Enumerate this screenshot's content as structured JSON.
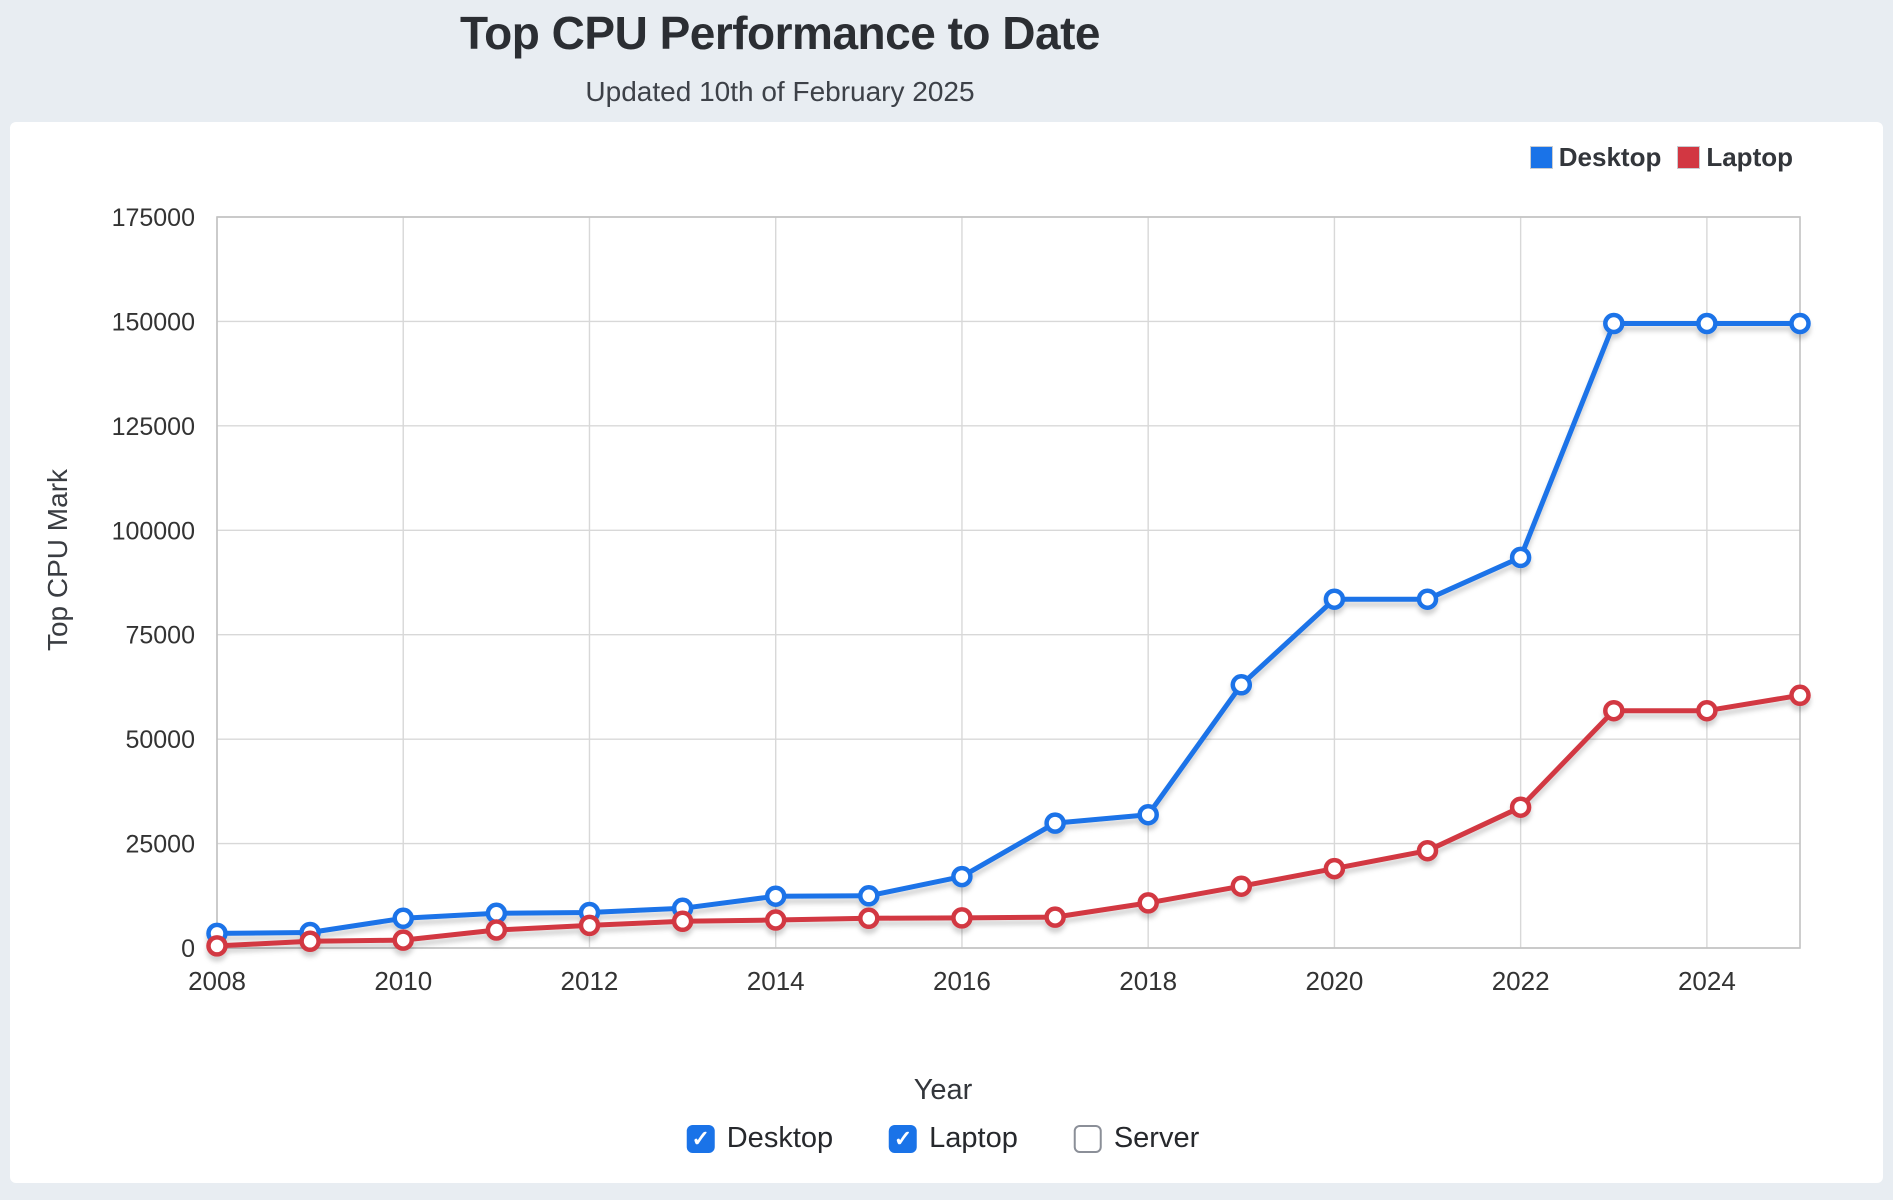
{
  "header": {
    "title": "Top CPU Performance to Date",
    "subtitle": "Updated 10th of February 2025"
  },
  "legend": {
    "items": [
      {
        "label": "Desktop",
        "color": "#1a73e8"
      },
      {
        "label": "Laptop",
        "color": "#d23742"
      }
    ]
  },
  "controls": {
    "items": [
      {
        "label": "Desktop",
        "checked": true,
        "checked_color": "#1a73e8"
      },
      {
        "label": "Laptop",
        "checked": true,
        "checked_color": "#1a73e8"
      },
      {
        "label": "Server",
        "checked": false,
        "checked_color": "#1a73e8"
      }
    ]
  },
  "chart_data": {
    "type": "line",
    "title": "Top CPU Performance to Date",
    "subtitle": "Updated 10th of February 2025",
    "xlabel": "Year",
    "ylabel": "Top CPU Mark",
    "x": [
      2008,
      2009,
      2010,
      2011,
      2012,
      2013,
      2014,
      2015,
      2016,
      2017,
      2018,
      2019,
      2020,
      2021,
      2022,
      2023,
      2024,
      2025
    ],
    "series": [
      {
        "name": "Desktop",
        "color": "#1a73e8",
        "values": [
          3500,
          3700,
          7100,
          8300,
          8500,
          9500,
          12400,
          12500,
          17100,
          29900,
          31900,
          63000,
          83500,
          83500,
          93500,
          149500,
          149500,
          149500
        ]
      },
      {
        "name": "Laptop",
        "color": "#d23742",
        "values": [
          500,
          1600,
          1900,
          4300,
          5400,
          6400,
          6700,
          7100,
          7200,
          7400,
          10800,
          14800,
          19000,
          23300,
          33700,
          56800,
          56800,
          60500
        ]
      }
    ],
    "ylim": [
      0,
      175000
    ],
    "ytick_step": 25000,
    "xticks": [
      2008,
      2010,
      2012,
      2014,
      2016,
      2018,
      2020,
      2022,
      2024
    ],
    "grid": true,
    "legend_position": "top-right",
    "marker": "open-circle",
    "grid_color": "#d8d8d8",
    "border_color": "#c2c2c2",
    "tick_label_color": "#333333"
  }
}
